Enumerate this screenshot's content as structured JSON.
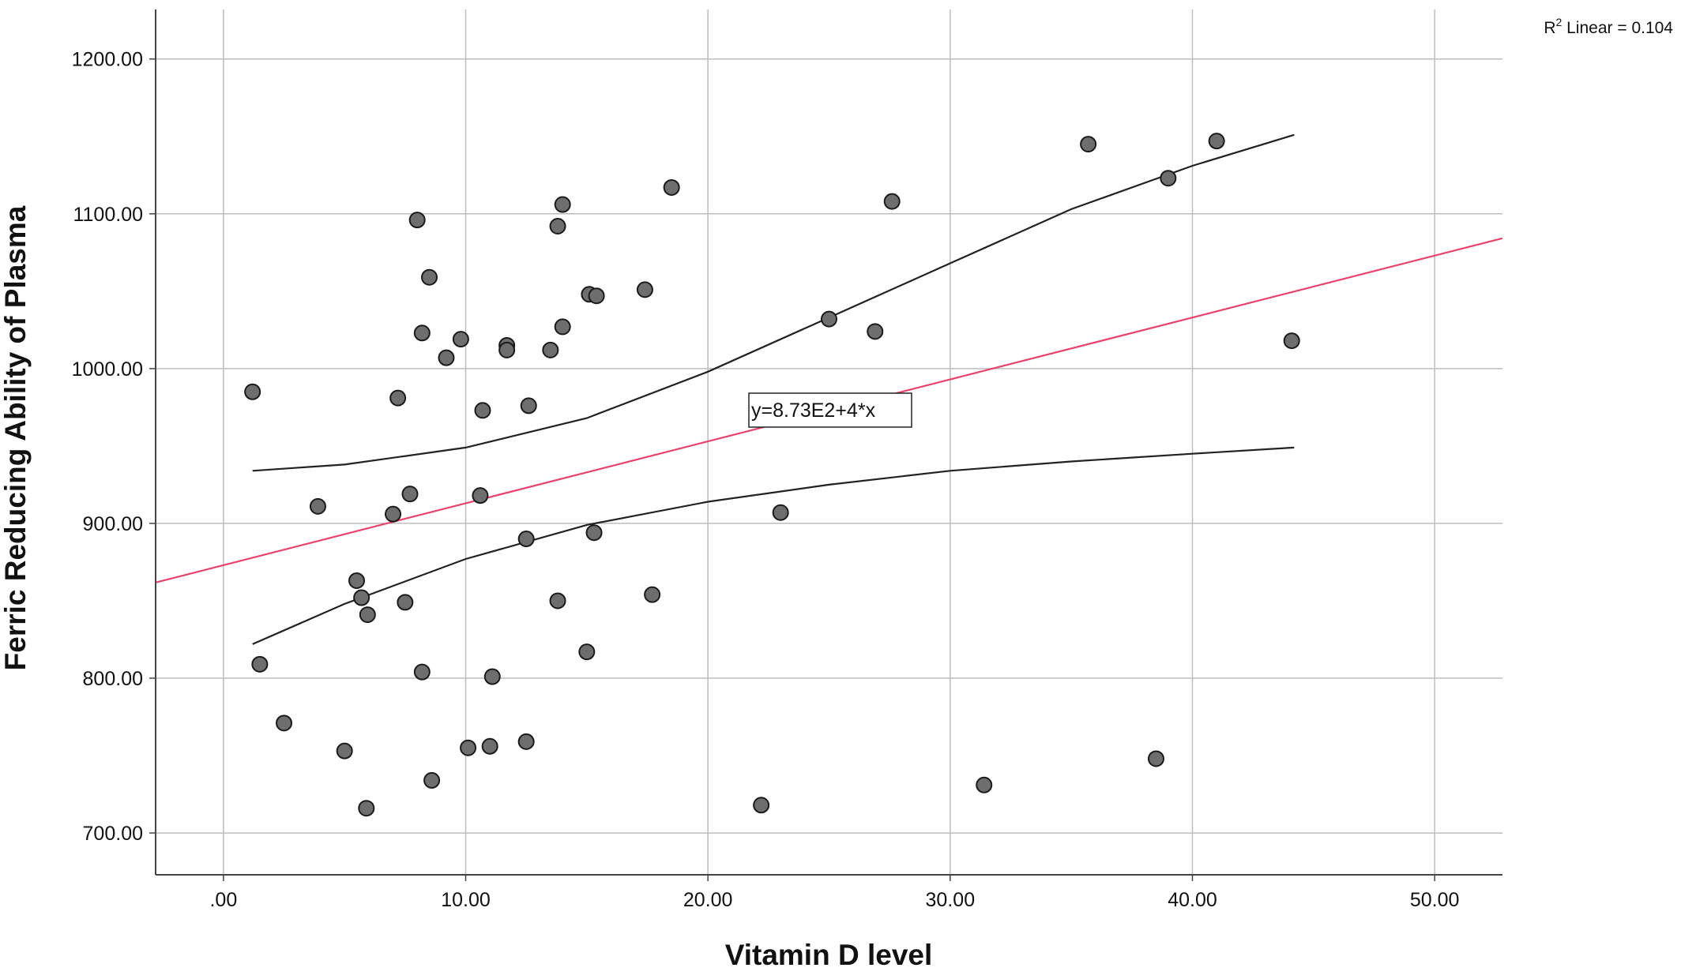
{
  "chart_data": {
    "type": "scatter",
    "title": "",
    "xlabel": "Vitamin D level",
    "ylabel": "Ferric Reducing Ability of Plasma",
    "xlim": [
      -2.8,
      52.8
    ],
    "ylim": [
      673,
      1232
    ],
    "grid": true,
    "x_ticks": [
      0,
      10,
      20,
      30,
      40,
      50
    ],
    "x_tick_labels": [
      ".00",
      "10.00",
      "20.00",
      "30.00",
      "40.00",
      "50.00"
    ],
    "y_ticks": [
      700,
      800,
      900,
      1000,
      1100,
      1200
    ],
    "y_tick_labels": [
      "700.00",
      "800.00",
      "900.00",
      "1000.00",
      "1100.00",
      "1200.00"
    ],
    "r2_label": {
      "base": "R",
      "sup": "2",
      "rest": " Linear = 0.104"
    },
    "fit_equation_label": "y=8.73E2+4*x",
    "fit_line": {
      "intercept": 873,
      "slope": 4,
      "color": "#e8436b"
    },
    "confidence_band": {
      "color": "#222222",
      "upper": [
        [
          1.2,
          934
        ],
        [
          5,
          938
        ],
        [
          10,
          949
        ],
        [
          15,
          968
        ],
        [
          20,
          998
        ],
        [
          25,
          1033
        ],
        [
          30,
          1068
        ],
        [
          35,
          1103
        ],
        [
          40,
          1131
        ],
        [
          44.2,
          1151
        ]
      ],
      "lower": [
        [
          1.2,
          822
        ],
        [
          5,
          848
        ],
        [
          10,
          877
        ],
        [
          15,
          899
        ],
        [
          20,
          914
        ],
        [
          25,
          925
        ],
        [
          30,
          934
        ],
        [
          35,
          940
        ],
        [
          40,
          945
        ],
        [
          44.2,
          949
        ]
      ]
    },
    "marker_color": "#6e6e6e",
    "series": [
      {
        "points": [
          [
            1.2,
            985
          ],
          [
            1.5,
            809
          ],
          [
            2.5,
            771
          ],
          [
            3.9,
            911
          ],
          [
            5,
            753
          ],
          [
            5.5,
            863
          ],
          [
            5.7,
            852
          ],
          [
            5.9,
            716
          ],
          [
            5.95,
            841
          ],
          [
            7,
            906
          ],
          [
            7.2,
            981
          ],
          [
            7.5,
            849
          ],
          [
            7.7,
            919
          ],
          [
            8,
            1096
          ],
          [
            8.2,
            1023
          ],
          [
            8.2,
            804
          ],
          [
            8.5,
            1059
          ],
          [
            8.6,
            734
          ],
          [
            9.2,
            1007
          ],
          [
            9.8,
            1019
          ],
          [
            10.1,
            755
          ],
          [
            10.6,
            918
          ],
          [
            10.7,
            973
          ],
          [
            11,
            756
          ],
          [
            11.1,
            801
          ],
          [
            11.7,
            1015
          ],
          [
            11.7,
            1012
          ],
          [
            12.5,
            759
          ],
          [
            12.5,
            890
          ],
          [
            12.6,
            976
          ],
          [
            13.5,
            1012
          ],
          [
            13.8,
            1092
          ],
          [
            13.8,
            850
          ],
          [
            14,
            1027
          ],
          [
            14,
            1106
          ],
          [
            15,
            817
          ],
          [
            15.1,
            1048
          ],
          [
            15.3,
            894
          ],
          [
            15.4,
            1047
          ],
          [
            17.4,
            1051
          ],
          [
            17.7,
            854
          ],
          [
            18.5,
            1117
          ],
          [
            22.2,
            718
          ],
          [
            23,
            907
          ],
          [
            25,
            1032
          ],
          [
            26.9,
            1024
          ],
          [
            27.6,
            1108
          ],
          [
            31.4,
            731
          ],
          [
            35.7,
            1145
          ],
          [
            38.5,
            748
          ],
          [
            39,
            1123
          ],
          [
            41,
            1147
          ],
          [
            44.1,
            1018
          ]
        ]
      }
    ]
  }
}
